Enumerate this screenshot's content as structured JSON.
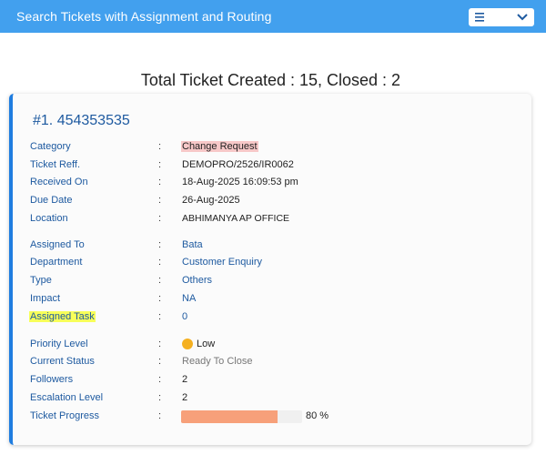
{
  "header": {
    "title": "Search Tickets with Assignment and Routing",
    "menu_icon": "hamburger-icon",
    "dropdown_icon": "chevron-down-icon",
    "bg_color": "#42a0ee"
  },
  "summary": {
    "text": "Total Ticket Created : 15, Closed : 2"
  },
  "ticket": {
    "title": "#1. 454353535",
    "accent_color": "#1f7de0",
    "fields": {
      "category": {
        "label": "Category",
        "value": "Change Request"
      },
      "ticket_ref": {
        "label": "Ticket Reff.",
        "value": "DEMOPRO/2526/IR0062"
      },
      "received_on": {
        "label": "Received On",
        "value": "18-Aug-2025 16:09:53 pm"
      },
      "due_date": {
        "label": "Due Date",
        "value": "26-Aug-2025"
      },
      "location": {
        "label": "Location",
        "value": "ABHIMANYA AP OFFICE"
      },
      "assigned_to": {
        "label": "Assigned To",
        "value": "Bata"
      },
      "department": {
        "label": "Department",
        "value": "Customer Enquiry"
      },
      "type": {
        "label": "Type",
        "value": "Others"
      },
      "impact": {
        "label": "Impact",
        "value": "NA"
      },
      "assigned_task": {
        "label": "Assigned Task",
        "value": "0"
      },
      "priority_level": {
        "label": "Priority Level",
        "value": "Low",
        "color": "#f5b020"
      },
      "current_status": {
        "label": "Current Status",
        "value": "Ready To Close"
      },
      "followers": {
        "label": "Followers",
        "value": "2"
      },
      "escalation_level": {
        "label": "Escalation Level",
        "value": "2"
      },
      "ticket_progress": {
        "label": "Ticket Progress",
        "value": "80 %",
        "percent": 80,
        "color": "#f7a07a"
      }
    },
    "colon": ":"
  }
}
